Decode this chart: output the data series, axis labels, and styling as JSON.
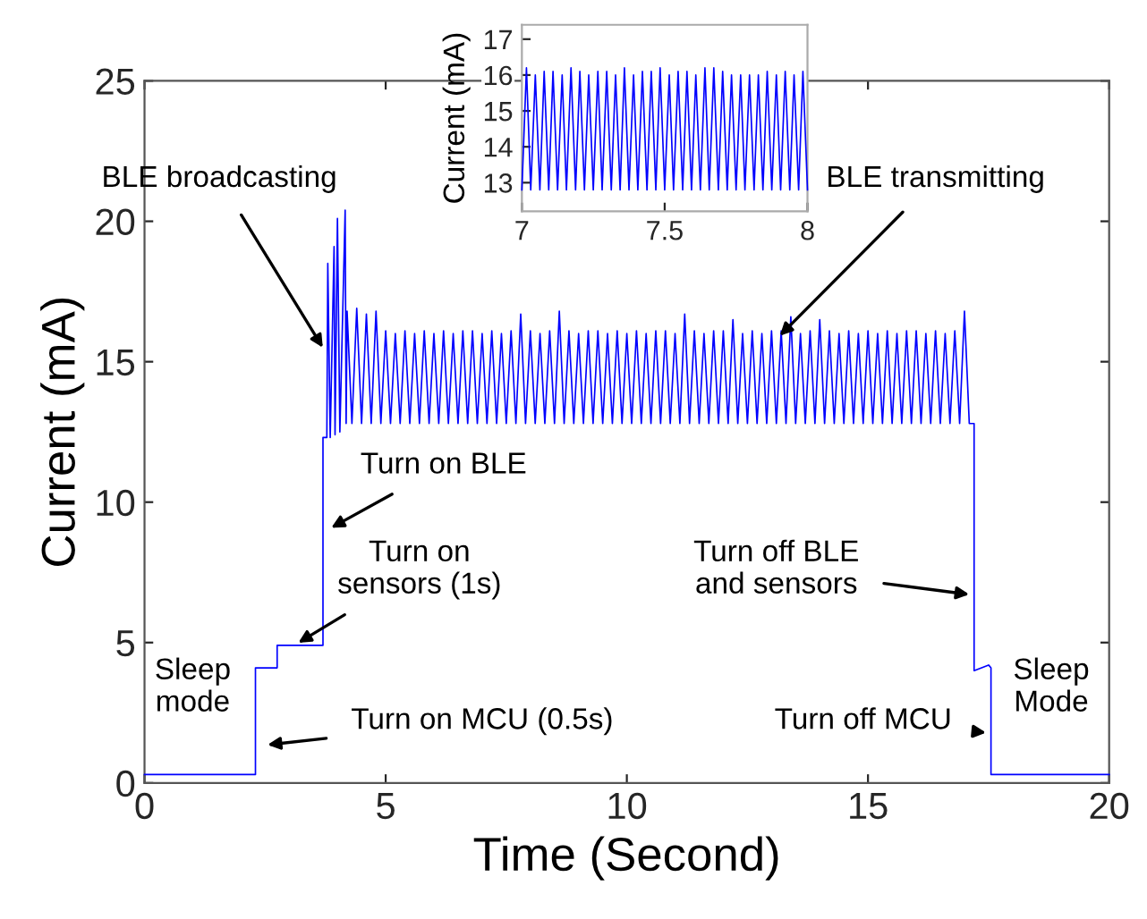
{
  "chart_data": [
    {
      "type": "line",
      "xlabel": "Time (Second)",
      "ylabel": "Current (mA)",
      "xlim": [
        0,
        20
      ],
      "ylim": [
        0,
        25
      ],
      "xticks": [
        0,
        5,
        10,
        15,
        20
      ],
      "yticks": [
        0,
        5,
        10,
        15,
        20,
        25
      ],
      "series": [
        {
          "color": "#0000ff",
          "x": [
            0,
            2.3,
            2.3,
            2.75,
            2.75,
            3.7,
            3.7,
            3.78,
            3.8,
            3.85,
            3.93,
            3.95,
            4.0,
            4.05,
            4.16,
            4.18,
            4.2,
            4.3,
            4.4,
            4.5,
            4.6,
            4.7,
            4.8,
            4.9,
            5.0,
            5.1,
            5.2,
            5.3,
            5.4,
            5.5,
            5.6,
            5.7,
            5.8,
            5.9,
            6.0,
            6.1,
            6.2,
            6.3,
            6.4,
            6.5,
            6.6,
            6.7,
            6.8,
            6.9,
            7.0,
            7.1,
            7.2,
            7.3,
            7.4,
            7.5,
            7.6,
            7.7,
            7.8,
            7.9,
            8.0,
            8.1,
            8.2,
            8.3,
            8.4,
            8.5,
            8.6,
            8.7,
            8.8,
            8.9,
            9.0,
            9.1,
            9.2,
            9.3,
            9.4,
            9.5,
            9.6,
            9.7,
            9.8,
            9.9,
            10.0,
            10.1,
            10.2,
            10.3,
            10.4,
            10.5,
            10.6,
            10.7,
            10.8,
            10.9,
            11.0,
            11.1,
            11.2,
            11.3,
            11.4,
            11.5,
            11.6,
            11.7,
            11.8,
            11.9,
            12.0,
            12.1,
            12.2,
            12.3,
            12.4,
            12.5,
            12.6,
            12.7,
            12.8,
            12.9,
            13.0,
            13.1,
            13.2,
            13.3,
            13.4,
            13.5,
            13.6,
            13.7,
            13.8,
            13.9,
            14.0,
            14.1,
            14.2,
            14.3,
            14.4,
            14.5,
            14.6,
            14.7,
            14.8,
            14.9,
            15.0,
            15.1,
            15.2,
            15.3,
            15.4,
            15.5,
            15.6,
            15.7,
            15.8,
            15.9,
            16.0,
            16.1,
            16.2,
            16.3,
            16.4,
            16.5,
            16.6,
            16.7,
            16.8,
            16.9,
            17.0,
            17.1,
            17.2,
            17.2,
            17.5,
            17.55,
            17.55,
            20
          ],
          "values": [
            0.3,
            0.3,
            4.1,
            4.1,
            4.9,
            4.9,
            12.3,
            12.3,
            18.5,
            12.3,
            19.1,
            12.4,
            20.1,
            12.5,
            20.4,
            12.8,
            16.8,
            12.8,
            16.9,
            12.8,
            16.7,
            12.8,
            16.8,
            12.8,
            16.1,
            12.8,
            16.0,
            12.8,
            16.1,
            12.8,
            16.0,
            12.8,
            16.1,
            12.8,
            16.0,
            12.8,
            16.1,
            12.8,
            16.0,
            12.8,
            16.1,
            12.8,
            16.1,
            12.8,
            16.0,
            12.8,
            16.1,
            12.8,
            16.0,
            12.8,
            16.1,
            12.8,
            16.7,
            12.8,
            16.1,
            12.8,
            16.0,
            12.8,
            16.1,
            12.8,
            16.8,
            12.8,
            16.1,
            12.8,
            16.0,
            12.8,
            16.1,
            12.8,
            16.1,
            12.8,
            16.0,
            12.8,
            16.1,
            12.8,
            16.0,
            12.8,
            16.1,
            12.8,
            16.0,
            12.8,
            16.1,
            12.8,
            16.1,
            12.8,
            16.0,
            12.8,
            16.7,
            12.8,
            16.1,
            12.8,
            16.0,
            12.8,
            16.1,
            12.8,
            16.1,
            12.8,
            16.5,
            12.8,
            16.0,
            12.8,
            16.1,
            12.8,
            16.0,
            12.8,
            16.1,
            12.8,
            16.1,
            12.8,
            16.6,
            12.8,
            16.0,
            12.8,
            16.1,
            12.8,
            16.5,
            12.8,
            16.1,
            12.8,
            16.0,
            12.8,
            16.1,
            12.8,
            16.0,
            12.8,
            16.1,
            12.8,
            16.0,
            12.8,
            16.1,
            12.8,
            16.0,
            12.8,
            16.1,
            12.8,
            16.1,
            12.8,
            16.0,
            12.8,
            16.1,
            12.8,
            16.0,
            12.8,
            16.1,
            12.8,
            16.8,
            12.8,
            12.8,
            4.0,
            4.2,
            4.1,
            0.3,
            0.3
          ]
        }
      ],
      "annotations": [
        {
          "text": "BLE broadcasting",
          "x": 3.75,
          "y": 15.35
        },
        {
          "text": "BLE transmitting",
          "x": 13.1,
          "y": 15.8
        },
        {
          "text": "Turn on BLE",
          "x": 3.78,
          "y": 9.0
        },
        {
          "text": "Turn on\nsensors (1s)",
          "x": 3.1,
          "y": 4.9
        },
        "Sleep\nmode",
        {
          "text": "Turn on MCU (0.5s)",
          "x": 2.45,
          "y": 1.34
        },
        {
          "text": "Turn off BLE\nand sensors",
          "x": 17.2,
          "y": 6.69
        },
        {
          "text": "Turn off MCU",
          "x": 17.55,
          "y": 1.78
        },
        "Sleep\nMode"
      ]
    },
    {
      "type": "line",
      "ylabel": "Current (mA)",
      "xlim": [
        7,
        8
      ],
      "ylim": [
        12.2,
        17.4
      ],
      "xticks": [
        7,
        7.5,
        8
      ],
      "yticks": [
        13,
        14,
        15,
        16,
        17
      ],
      "series": [
        {
          "color": "#0000ff",
          "x": [
            7.0,
            7.016,
            7.031,
            7.047,
            7.063,
            7.078,
            7.094,
            7.109,
            7.125,
            7.141,
            7.156,
            7.172,
            7.188,
            7.203,
            7.219,
            7.234,
            7.25,
            7.266,
            7.281,
            7.297,
            7.313,
            7.328,
            7.344,
            7.359,
            7.375,
            7.391,
            7.406,
            7.422,
            7.438,
            7.453,
            7.469,
            7.484,
            7.5,
            7.516,
            7.531,
            7.547,
            7.563,
            7.578,
            7.594,
            7.609,
            7.625,
            7.641,
            7.656,
            7.672,
            7.688,
            7.703,
            7.719,
            7.734,
            7.75,
            7.766,
            7.781,
            7.797,
            7.813,
            7.828,
            7.844,
            7.859,
            7.875,
            7.891,
            7.906,
            7.922,
            7.938,
            7.953,
            7.969,
            7.984,
            8.0
          ],
          "values": [
            12.8,
            16.2,
            12.8,
            16.0,
            12.8,
            16.1,
            12.8,
            16.1,
            12.8,
            16.0,
            12.8,
            16.2,
            12.8,
            16.1,
            12.8,
            16.0,
            12.8,
            16.1,
            12.8,
            16.1,
            12.8,
            16.0,
            12.8,
            16.2,
            12.8,
            16.0,
            12.8,
            16.1,
            12.8,
            16.1,
            12.8,
            16.2,
            12.8,
            16.0,
            12.8,
            16.1,
            12.8,
            16.1,
            12.8,
            16.0,
            12.8,
            16.2,
            12.8,
            16.2,
            12.8,
            16.1,
            12.8,
            16.0,
            12.8,
            16.0,
            12.8,
            16.0,
            12.8,
            16.0,
            12.8,
            16.1,
            12.8,
            16.0,
            12.8,
            16.1,
            12.8,
            16.0,
            12.8,
            16.1,
            12.8
          ]
        }
      ]
    }
  ]
}
